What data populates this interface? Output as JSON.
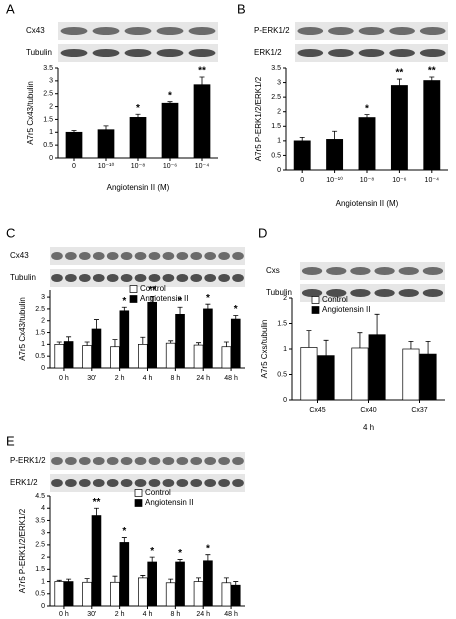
{
  "chart_data": [
    {
      "type": "bar",
      "panel": "A",
      "blot_labels": [
        "Cx43",
        "Tubulin"
      ],
      "y_label": "A7r5 Cx43/tubulin",
      "x_label": "Angiotensin II (M)",
      "categories": [
        "0",
        "10⁻¹⁰",
        "10⁻⁸",
        "10⁻⁶",
        "10⁻⁴"
      ],
      "values": [
        1.0,
        1.1,
        1.58,
        2.13,
        2.85
      ],
      "errors": [
        0.07,
        0.15,
        0.12,
        0.06,
        0.3
      ],
      "significance": [
        null,
        null,
        "*",
        "*",
        "**"
      ],
      "color": "#000000",
      "ylim": [
        0,
        3.5
      ],
      "yticks": [
        0,
        0.5,
        1,
        1.5,
        2,
        2.5,
        3,
        3.5
      ]
    },
    {
      "type": "bar",
      "panel": "B",
      "blot_labels": [
        "P-ERK1/2",
        "ERK1/2"
      ],
      "y_label": "A7r5 P-ERK1/2/ERK1/2",
      "x_label": "Angiotensin II (M)",
      "categories": [
        "0",
        "10⁻¹⁰",
        "10⁻⁸",
        "10⁻⁶",
        "10⁻⁴"
      ],
      "values": [
        1.0,
        1.05,
        1.8,
        2.9,
        3.07
      ],
      "errors": [
        0.12,
        0.28,
        0.1,
        0.22,
        0.12
      ],
      "significance": [
        null,
        null,
        "*",
        "**",
        "**"
      ],
      "color": "#000000",
      "ylim": [
        0,
        3.5
      ],
      "yticks": [
        0,
        0.5,
        1,
        1.5,
        2,
        2.5,
        3,
        3.5
      ]
    },
    {
      "type": "grouped_bar",
      "panel": "C",
      "blot_labels": [
        "Cx43",
        "Tubulin"
      ],
      "y_label": "A7r5 Cx43/tubulin",
      "categories": [
        "0 h",
        "30'",
        "2 h",
        "4 h",
        "8 h",
        "24 h",
        "48 h"
      ],
      "ylim": [
        0,
        3.3
      ],
      "yticks": [
        0,
        0.5,
        1,
        1.5,
        2,
        2.5,
        3
      ],
      "series": [
        {
          "name": "Control",
          "color": "#ffffff",
          "values": [
            1.0,
            0.95,
            0.9,
            1.0,
            1.05,
            0.97,
            0.9
          ],
          "errors": [
            0.1,
            0.15,
            0.3,
            0.3,
            0.1,
            0.1,
            0.2
          ]
        },
        {
          "name": "Angiotensin II",
          "color": "#000000",
          "values": [
            1.12,
            1.65,
            2.42,
            2.78,
            2.27,
            2.5,
            2.07
          ],
          "errors": [
            0.2,
            0.4,
            0.15,
            0.25,
            0.3,
            0.2,
            0.15
          ],
          "significance": [
            null,
            null,
            "*",
            "**",
            "*",
            "*",
            "*"
          ]
        }
      ]
    },
    {
      "type": "grouped_bar",
      "panel": "D",
      "blot_labels": [
        "Cxs",
        "Tubulin"
      ],
      "y_label": "A7r5 Cxs/tubulin",
      "x_label": "4 h",
      "categories": [
        "Cx45",
        "Cx40",
        "Cx37"
      ],
      "ylim": [
        0,
        2
      ],
      "yticks": [
        0,
        0.5,
        1,
        1.5,
        2
      ],
      "series": [
        {
          "name": "Control",
          "color": "#ffffff",
          "values": [
            1.03,
            1.02,
            1.0
          ],
          "errors": [
            0.33,
            0.3,
            0.15
          ]
        },
        {
          "name": "Angiotensin II",
          "color": "#000000",
          "values": [
            0.87,
            1.28,
            0.9
          ],
          "errors": [
            0.3,
            0.4,
            0.25
          ]
        }
      ]
    },
    {
      "type": "grouped_bar",
      "panel": "E",
      "blot_labels": [
        "P-ERK1/2",
        "ERK1/2"
      ],
      "y_label": "A7r5 P-ERK1/2/ERK1/2",
      "categories": [
        "0 h",
        "30'",
        "2 h",
        "4 h",
        "8 h",
        "24 h",
        "48 h"
      ],
      "ylim": [
        0,
        4.5
      ],
      "yticks": [
        0,
        0.5,
        1,
        1.5,
        2,
        2.5,
        3,
        3.5,
        4,
        4.5
      ],
      "series": [
        {
          "name": "Control",
          "color": "#ffffff",
          "values": [
            1.0,
            0.97,
            0.97,
            1.15,
            0.95,
            1.0,
            0.95
          ],
          "errors": [
            0.05,
            0.15,
            0.25,
            0.1,
            0.15,
            0.15,
            0.2
          ]
        },
        {
          "name": "Angiotensin II",
          "color": "#000000",
          "values": [
            1.0,
            3.7,
            2.6,
            1.8,
            1.8,
            1.85,
            0.85
          ],
          "errors": [
            0.1,
            0.3,
            0.2,
            0.2,
            0.1,
            0.25,
            0.15
          ],
          "significance": [
            null,
            "**",
            "*",
            "*",
            "*",
            "*",
            null
          ]
        }
      ]
    }
  ]
}
